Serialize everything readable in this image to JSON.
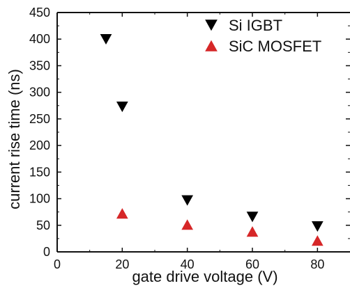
{
  "chart_data": {
    "type": "scatter",
    "title": "",
    "xlabel": "gate drive voltage (V)",
    "ylabel": "current rise time (ns)",
    "xlim": [
      0,
      90
    ],
    "ylim": [
      0,
      450
    ],
    "x_ticks": [
      0,
      20,
      40,
      60,
      80
    ],
    "y_ticks": [
      0,
      50,
      100,
      150,
      200,
      250,
      300,
      350,
      400,
      450
    ],
    "legend_position": "top-right",
    "grid": false,
    "series": [
      {
        "name": "Si IGBT",
        "marker": "triangle-down",
        "color": "#000000",
        "points": [
          {
            "x": 15,
            "y": 400
          },
          {
            "x": 20,
            "y": 273
          },
          {
            "x": 40,
            "y": 97
          },
          {
            "x": 60,
            "y": 66
          },
          {
            "x": 80,
            "y": 48
          }
        ]
      },
      {
        "name": "SiC MOSFET",
        "marker": "triangle-up",
        "color": "#d62728",
        "points": [
          {
            "x": 20,
            "y": 72
          },
          {
            "x": 40,
            "y": 51
          },
          {
            "x": 60,
            "y": 38
          },
          {
            "x": 80,
            "y": 21
          }
        ]
      }
    ]
  }
}
